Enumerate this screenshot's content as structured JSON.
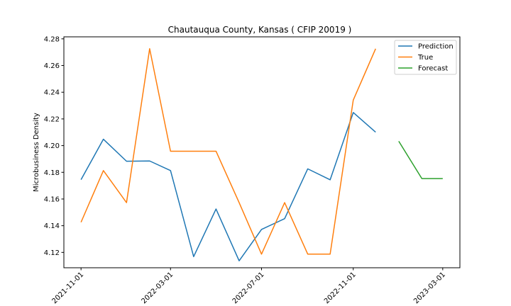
{
  "chart_data": {
    "type": "line",
    "title": "Chautauqua County, Kansas ( CFIP 20019 )",
    "xlabel": "",
    "ylabel": "Microbusiness Density",
    "x_ticks": [
      "2021-11-01",
      "2022-03-01",
      "2022-07-01",
      "2022-11-01",
      "2023-03-01"
    ],
    "y_ticks": [
      "4.12",
      "4.14",
      "4.16",
      "4.18",
      "4.20",
      "4.22",
      "4.24",
      "4.26",
      "4.28"
    ],
    "ylim": [
      4.1085,
      4.2815
    ],
    "xlim": [
      "2021-10-09",
      "2023-03-24"
    ],
    "legend_position": "top-right",
    "grid": false,
    "series": [
      {
        "name": "Prediction",
        "color": "#1f77b4",
        "x": [
          "2021-11-01",
          "2021-12-01",
          "2022-01-01",
          "2022-02-01",
          "2022-03-01",
          "2022-04-01",
          "2022-05-01",
          "2022-06-01",
          "2022-07-01",
          "2022-08-01",
          "2022-09-01",
          "2022-10-01",
          "2022-11-01",
          "2022-12-01"
        ],
        "values": [
          4.1745,
          4.2048,
          4.1883,
          4.1885,
          4.1813,
          4.1168,
          4.1525,
          4.1137,
          4.1372,
          4.1453,
          4.1826,
          4.1744,
          4.2248,
          4.2101
        ]
      },
      {
        "name": "True",
        "color": "#ff7f0e",
        "x": [
          "2021-11-01",
          "2021-12-01",
          "2022-01-01",
          "2022-02-01",
          "2022-03-01",
          "2022-04-01",
          "2022-05-01",
          "2022-06-01",
          "2022-07-01",
          "2022-08-01",
          "2022-09-01",
          "2022-10-01",
          "2022-11-01",
          "2022-12-01"
        ],
        "values": [
          4.1426,
          4.1813,
          4.1573,
          4.2726,
          4.1958,
          4.1958,
          4.1958,
          4.1573,
          4.1187,
          4.1573,
          4.1187,
          4.1187,
          4.2341,
          4.2726
        ]
      },
      {
        "name": "Forecast",
        "color": "#2ca02c",
        "x": [
          "2023-01-01",
          "2023-02-01",
          "2023-03-01"
        ],
        "values": [
          4.2033,
          4.1753,
          4.1753
        ]
      }
    ]
  }
}
